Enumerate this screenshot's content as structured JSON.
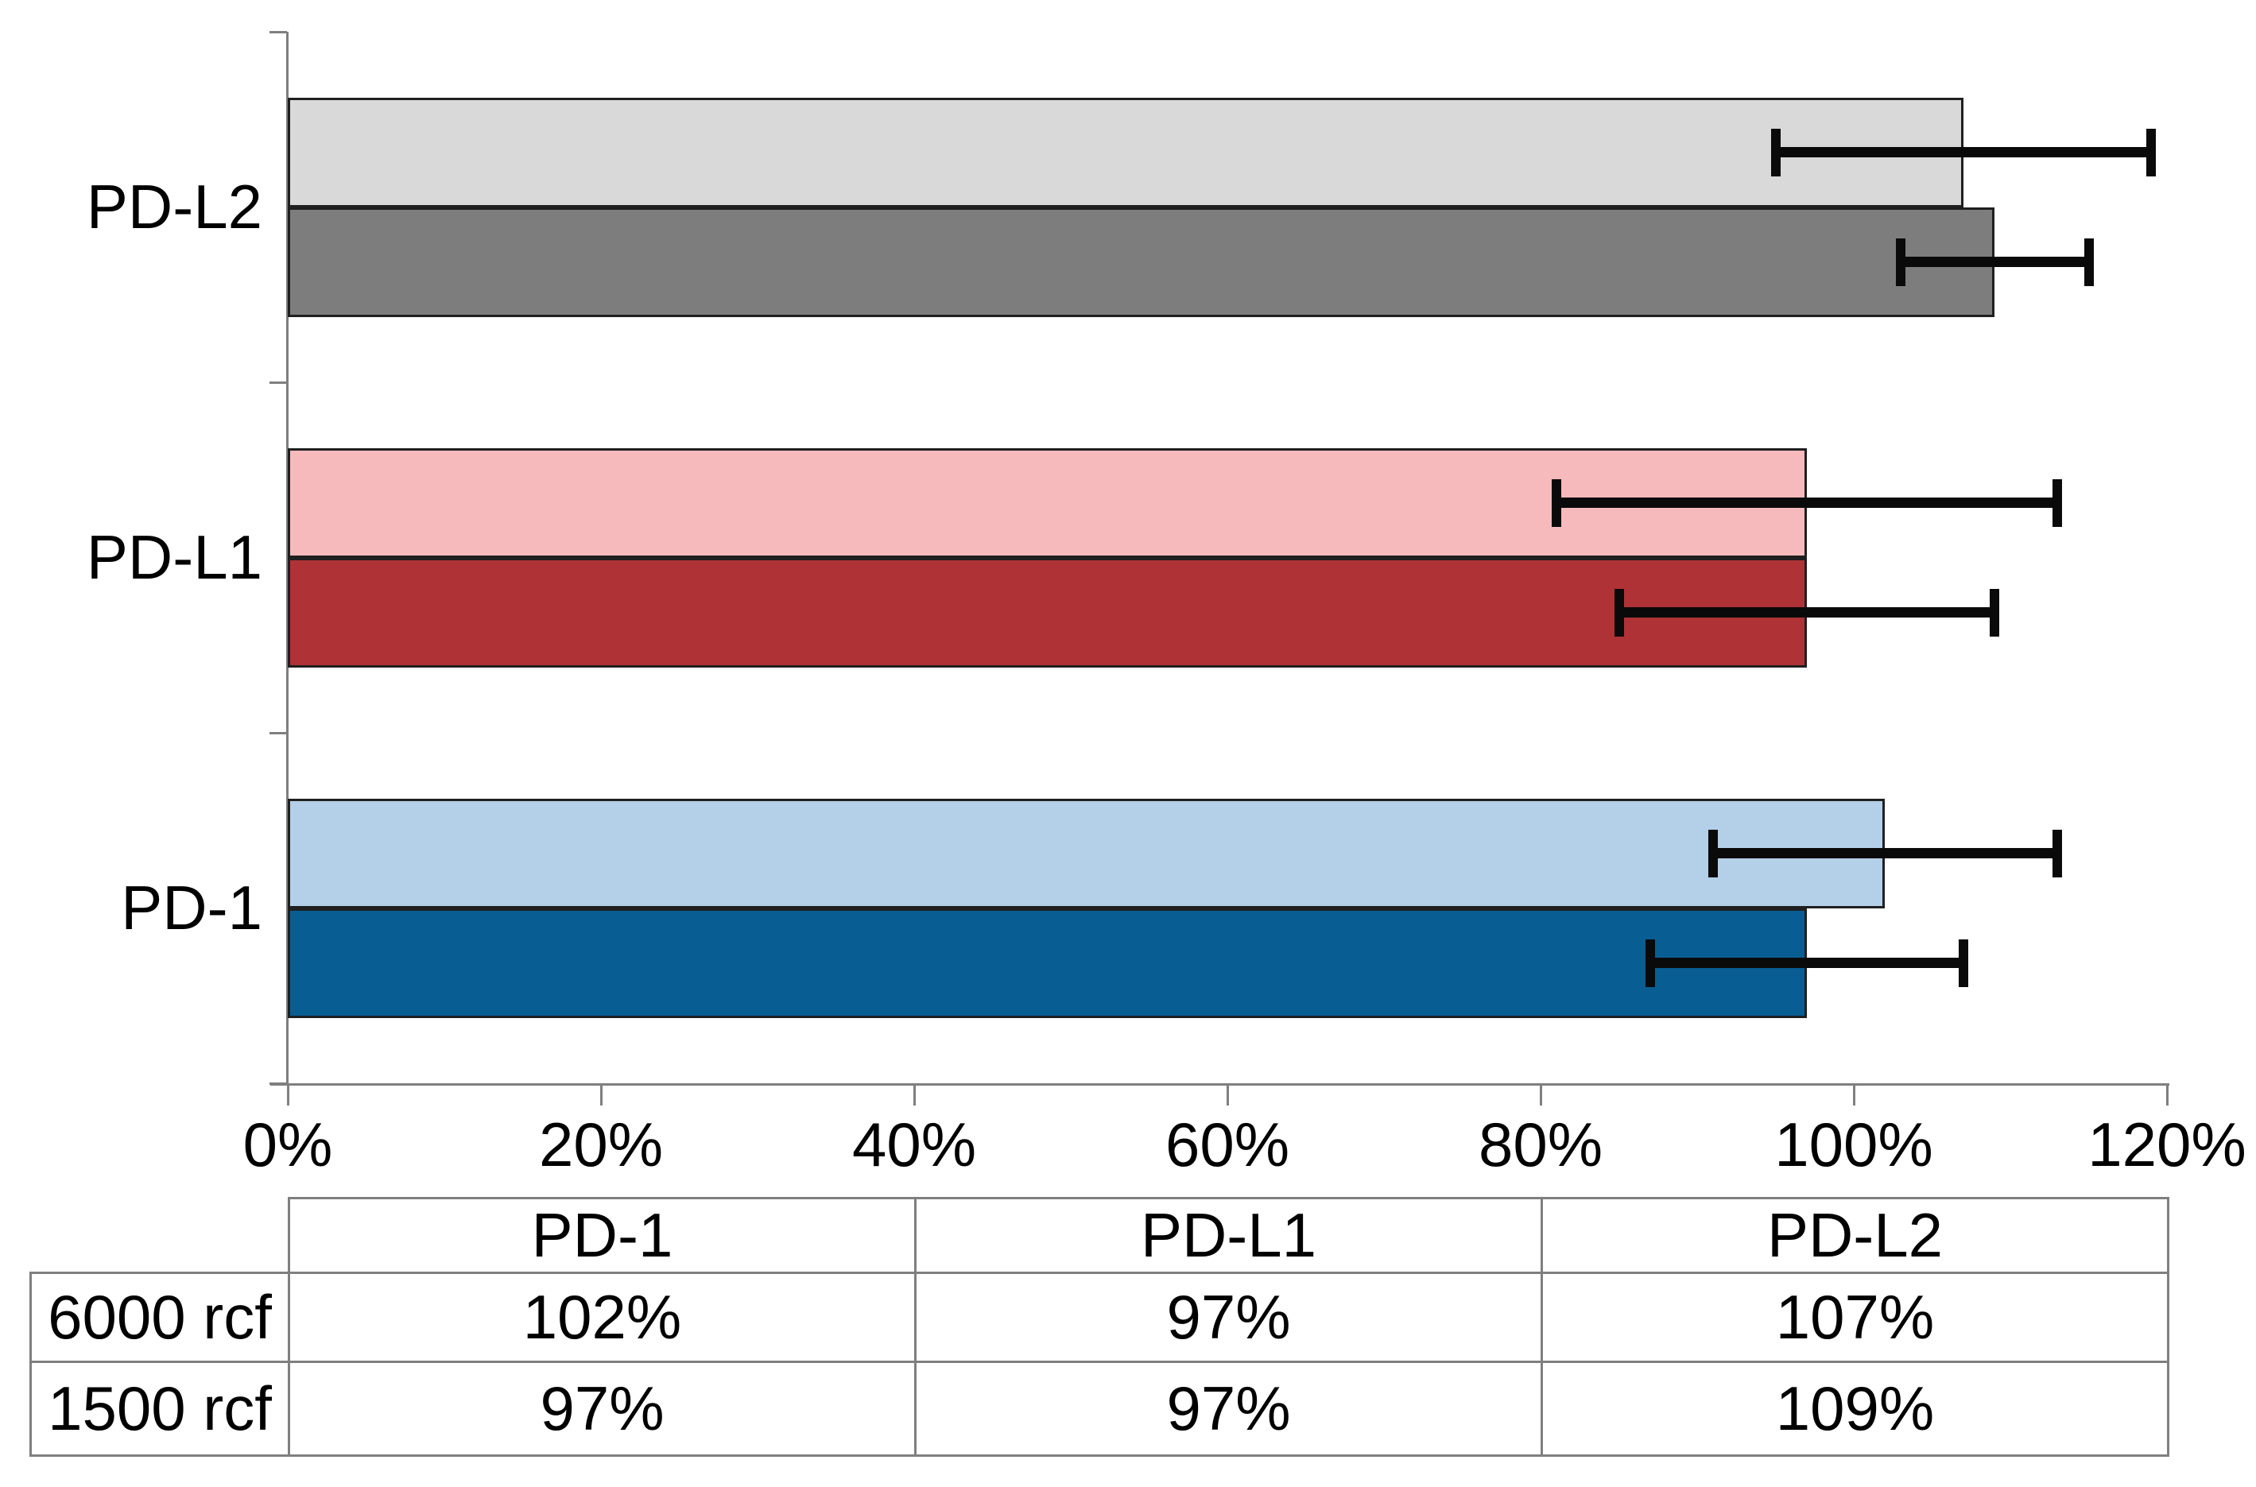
{
  "chart_data": {
    "type": "bar",
    "orientation": "horizontal",
    "title": "",
    "x_axis": {
      "min": 0,
      "max": 120,
      "step": 20,
      "unit": "%",
      "tick_labels": [
        "0%",
        "20%",
        "40%",
        "60%",
        "80%",
        "100%",
        "120%"
      ]
    },
    "grid": "off",
    "legend": "none (series identified in data table)",
    "categories_top_to_bottom": [
      "PD-L2",
      "PD-L1",
      "PD-1"
    ],
    "series": [
      {
        "name": "6000 rcf",
        "shade": "light",
        "values": {
          "PD-1": 102,
          "PD-L1": 97,
          "PD-L2": 107
        },
        "error_margin_pct": {
          "PD-1": 11,
          "PD-L1": 16,
          "PD-L2": 12
        }
      },
      {
        "name": "1500 rcf",
        "shade": "dark",
        "values": {
          "PD-1": 97,
          "PD-L1": 97,
          "PD-L2": 109
        },
        "error_margin_pct": {
          "PD-1": 10,
          "PD-L1": 12,
          "PD-L2": 6
        }
      }
    ],
    "category_colors": {
      "PD-1": {
        "light": "#b4cfe8",
        "dark": "#085e93"
      },
      "PD-L1": {
        "light": "#f6b9bc",
        "dark": "#ae3236"
      },
      "PD-L2": {
        "light": "#d9d9d9",
        "dark": "#7d7d7d"
      }
    },
    "style_colors": {
      "axis": "#7f7f7f",
      "bar_border": "#1f1f1f",
      "error_bar": "#0a0a0a",
      "table_border": "#7f7f7f",
      "text": "#000000"
    }
  },
  "data_table": {
    "corner_label": "",
    "col_headers": [
      "PD-1",
      "PD-L1",
      "PD-L2"
    ],
    "rows": [
      {
        "label": "6000 rcf",
        "values": [
          "102%",
          "97%",
          "107%"
        ]
      },
      {
        "label": "1500 rcf",
        "values": [
          "97%",
          "97%",
          "109%"
        ]
      }
    ]
  }
}
